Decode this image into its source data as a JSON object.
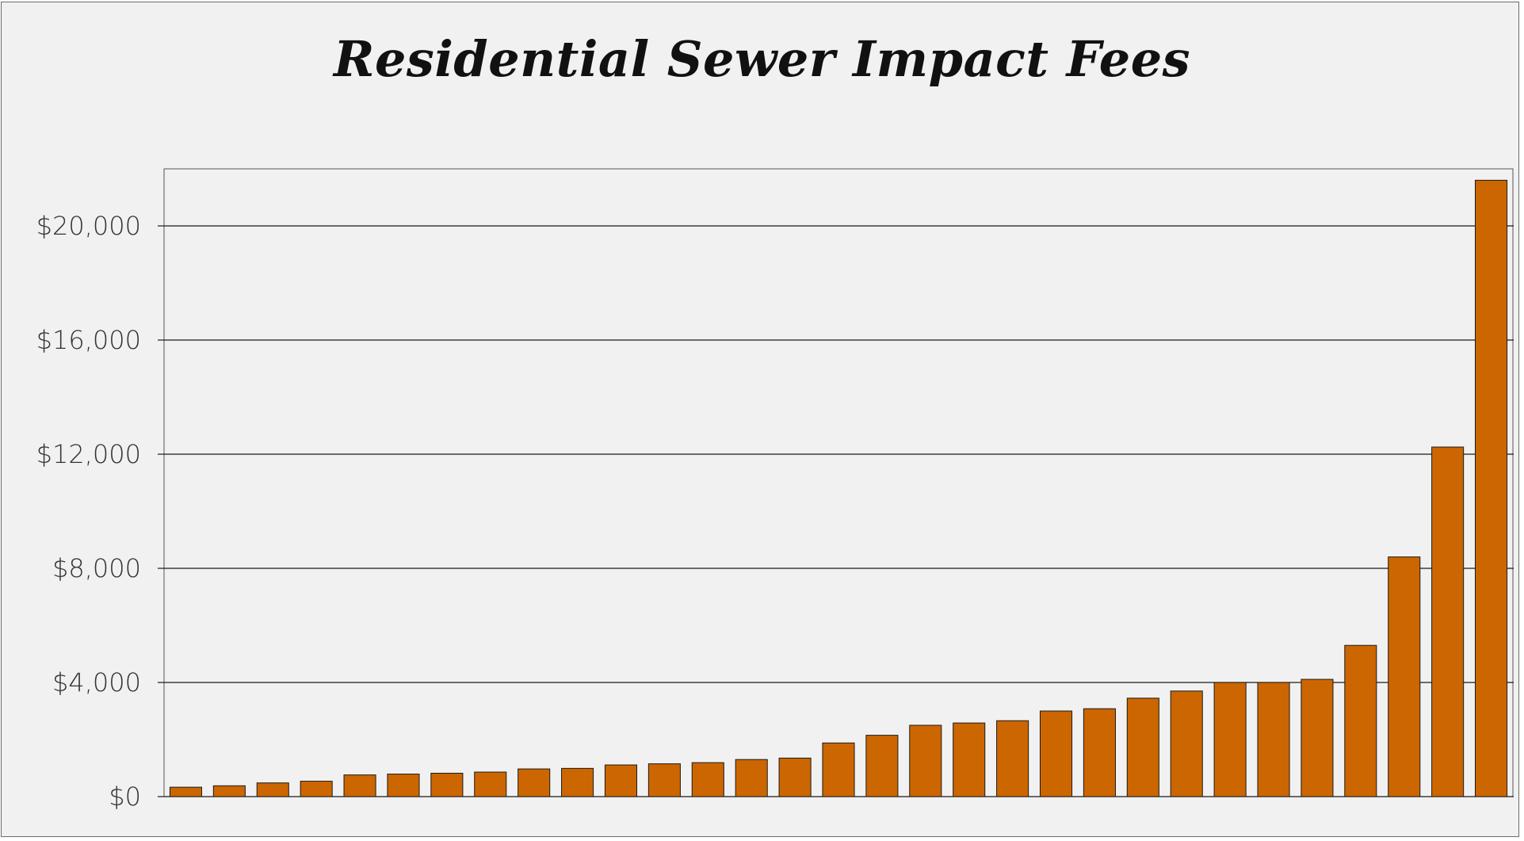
{
  "chart_data": {
    "type": "bar",
    "title": "Residential Sewer Impact Fees",
    "xlabel": "",
    "ylabel": "",
    "ylim": [
      0,
      22000
    ],
    "y_ticks": [
      0,
      4000,
      8000,
      12000,
      16000,
      20000
    ],
    "y_tick_labels": [
      "$0",
      "$4,000",
      "$8,000",
      "$12,000",
      "$16,000",
      "$20,000"
    ],
    "grid": true,
    "legend": "none",
    "bar_color": "#cc6600",
    "values": [
      330,
      380,
      480,
      540,
      760,
      790,
      820,
      860,
      970,
      990,
      1110,
      1150,
      1190,
      1300,
      1350,
      1880,
      2150,
      2500,
      2580,
      2660,
      3000,
      3080,
      3450,
      3700,
      4000,
      4000,
      4110,
      5300,
      8400,
      12250,
      21600
    ]
  }
}
